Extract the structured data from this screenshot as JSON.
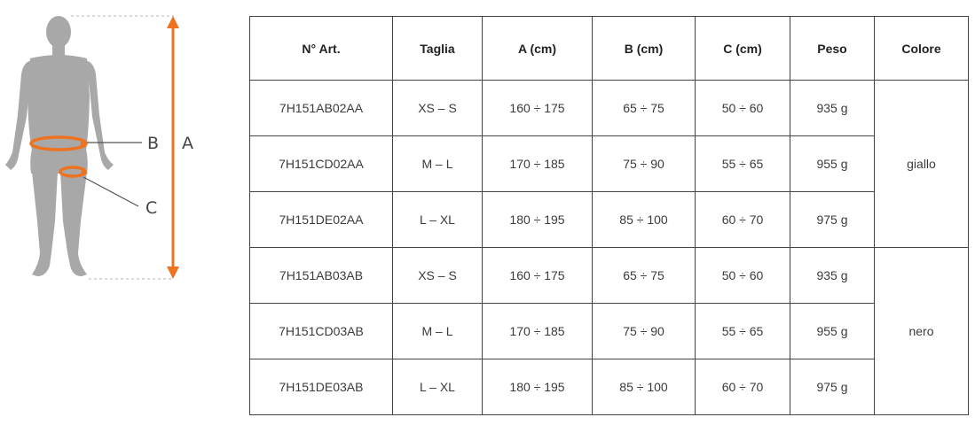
{
  "figure": {
    "labels": {
      "a": "A",
      "b": "B",
      "c": "C"
    },
    "colors": {
      "accent": "#ee7320",
      "silhouette": "#a8a8a8",
      "leader": "#555555"
    }
  },
  "table": {
    "headers": [
      "N° Art.",
      "Taglia",
      "A (cm)",
      "B (cm)",
      "C (cm)",
      "Peso",
      "Colore"
    ],
    "rows": [
      {
        "art": "7H151AB02AA",
        "taglia": "XS – S",
        "a": "160 ÷ 175",
        "b": "65 ÷ 75",
        "c": "50 ÷ 60",
        "peso": "935 g"
      },
      {
        "art": "7H151CD02AA",
        "taglia": "M – L",
        "a": "170 ÷ 185",
        "b": "75 ÷ 90",
        "c": "55 ÷ 65",
        "peso": "955 g"
      },
      {
        "art": "7H151DE02AA",
        "taglia": "L – XL",
        "a": "180 ÷ 195",
        "b": "85 ÷ 100",
        "c": "60 ÷ 70",
        "peso": "975 g"
      },
      {
        "art": "7H151AB03AB",
        "taglia": "XS – S",
        "a": "160 ÷ 175",
        "b": "65 ÷ 75",
        "c": "50 ÷ 60",
        "peso": "935 g"
      },
      {
        "art": "7H151CD03AB",
        "taglia": "M – L",
        "a": "170 ÷ 185",
        "b": "75 ÷ 90",
        "c": "55 ÷ 65",
        "peso": "955 g"
      },
      {
        "art": "7H151DE03AB",
        "taglia": "L – XL",
        "a": "180 ÷ 195",
        "b": "85 ÷ 100",
        "c": "60 ÷ 70",
        "peso": "975 g"
      }
    ],
    "colors": [
      "giallo",
      "nero"
    ]
  }
}
